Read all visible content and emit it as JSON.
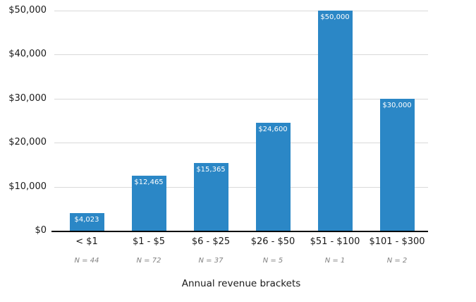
{
  "chart_data": {
    "type": "bar",
    "title": "",
    "xlabel": "Annual revenue brackets",
    "ylabel": "",
    "categories": [
      "< $1",
      "$1 - $5",
      "$6 - $25",
      "$26 - $50",
      "$51 - $100",
      "$101 - $300"
    ],
    "values": [
      4023,
      12465,
      15365,
      24600,
      50000,
      30000
    ],
    "bar_value_labels": [
      "$4,023",
      "$12,465",
      "$15,365",
      "$24,600",
      "$50,000",
      "$30,000"
    ],
    "sample_size_labels": [
      "N = 44",
      "N = 72",
      "N = 37",
      "N = 5",
      "N = 1",
      "N = 2"
    ],
    "y_ticks": [
      {
        "value": 0,
        "label": "$0"
      },
      {
        "value": 10000,
        "label": "$10,000"
      },
      {
        "value": 20000,
        "label": "$20,000"
      },
      {
        "value": 30000,
        "label": "$30,000"
      },
      {
        "value": 40000,
        "label": "$40,000"
      },
      {
        "value": 50000,
        "label": "$50,000"
      }
    ],
    "ylim": [
      0,
      50000
    ],
    "grid": true,
    "legend": "none",
    "colors": {
      "bar": "#2b87c6",
      "bar_label_text": "#ffffff",
      "gridline": "#d9d9d9",
      "axis_line": "#000000",
      "tick_text": "#1a1a1a",
      "n_label_text": "#808080"
    }
  }
}
